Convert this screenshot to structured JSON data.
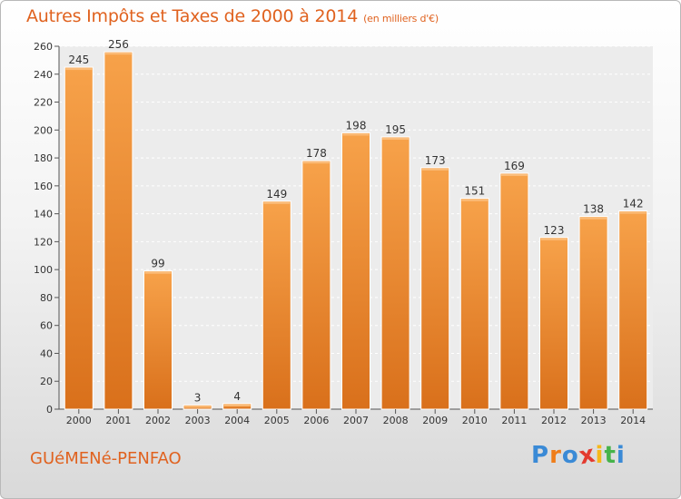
{
  "chart_data": {
    "type": "bar",
    "title": "Autres Impôts et Taxes de 2000 à 2014",
    "subtitle": "(en milliers d'€)",
    "categories": [
      "2000",
      "2001",
      "2002",
      "2003",
      "2004",
      "2005",
      "2006",
      "2007",
      "2008",
      "2009",
      "2010",
      "2011",
      "2012",
      "2013",
      "2014"
    ],
    "values": [
      245,
      256,
      99,
      3,
      4,
      149,
      178,
      198,
      195,
      173,
      151,
      169,
      123,
      138,
      142
    ],
    "ylim": [
      0,
      260
    ],
    "yticks": [
      0,
      20,
      40,
      60,
      80,
      100,
      120,
      140,
      160,
      180,
      200,
      220,
      240,
      260
    ],
    "grid": true,
    "bar_color": "#f2922f"
  },
  "footer": {
    "city": "GUéMENé-PENFAO",
    "logo": [
      "P",
      "r",
      "o",
      "x",
      "i",
      "t",
      "i"
    ]
  },
  "colors": {
    "title": "#e0621f",
    "logo": [
      "#3a8ad6",
      "#ef7d1a",
      "#3a8ad6",
      "#e33a2f",
      "#f6b81a",
      "#46b34a",
      "#3a8ad6"
    ]
  }
}
